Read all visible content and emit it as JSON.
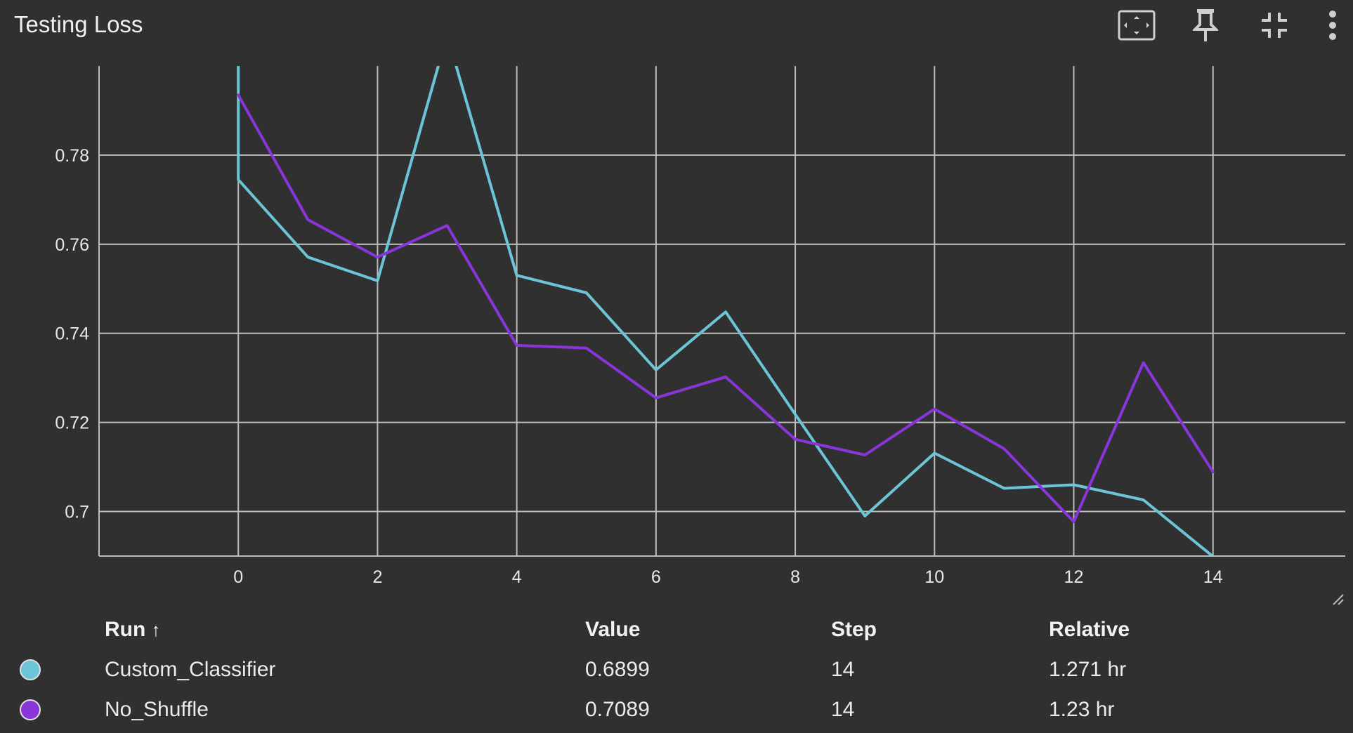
{
  "header": {
    "title": "Testing Loss"
  },
  "toolbar": {
    "icons": [
      "fit-to-screen-icon",
      "pin-icon",
      "collapse-icon",
      "more-vert-icon"
    ]
  },
  "chart_data": {
    "type": "line",
    "title": "Testing Loss",
    "xlabel": "",
    "ylabel": "",
    "xlim": [
      -2,
      15.9
    ],
    "ylim": [
      0.69,
      0.8
    ],
    "x_ticks": [
      0,
      2,
      4,
      6,
      8,
      10,
      12,
      14
    ],
    "x_tick_labels": [
      "0",
      "2",
      "4",
      "6",
      "8",
      "10",
      "12",
      "14"
    ],
    "y_ticks": [
      0.7,
      0.72,
      0.74,
      0.76,
      0.78
    ],
    "y_tick_labels": [
      "0.7",
      "0.72",
      "0.74",
      "0.76",
      "0.78"
    ],
    "grid": true,
    "series": [
      {
        "name": "Custom_Classifier",
        "color": "#6cc5d6",
        "x": [
          0,
          0,
          1,
          2,
          3,
          4,
          5,
          6,
          7,
          8,
          9,
          10,
          11,
          12,
          13,
          14
        ],
        "y": [
          0.805,
          0.7745,
          0.7571,
          0.7518,
          0.807,
          0.753,
          0.7491,
          0.7318,
          0.7448,
          0.7218,
          0.699,
          0.7131,
          0.7052,
          0.706,
          0.7026,
          0.6899
        ]
      },
      {
        "name": "No_Shuffle",
        "color": "#8a35da",
        "x": [
          0,
          1,
          2,
          3,
          4,
          5,
          6,
          7,
          8,
          9,
          10,
          11,
          12,
          13,
          14
        ],
        "y": [
          0.7935,
          0.7655,
          0.7571,
          0.7642,
          0.7373,
          0.7367,
          0.7255,
          0.7302,
          0.7162,
          0.7127,
          0.723,
          0.7141,
          0.6977,
          0.7334,
          0.7089
        ]
      }
    ]
  },
  "table": {
    "headers": {
      "run": "Run",
      "sort_icon": "↑",
      "value": "Value",
      "step": "Step",
      "relative": "Relative"
    },
    "rows": [
      {
        "run": "Custom_Classifier",
        "color": "#6cc5d6",
        "value": "0.6899",
        "step": "14",
        "relative": "1.271 hr"
      },
      {
        "run": "No_Shuffle",
        "color": "#8a35da",
        "value": "0.7089",
        "step": "14",
        "relative": "1.23 hr"
      }
    ]
  }
}
